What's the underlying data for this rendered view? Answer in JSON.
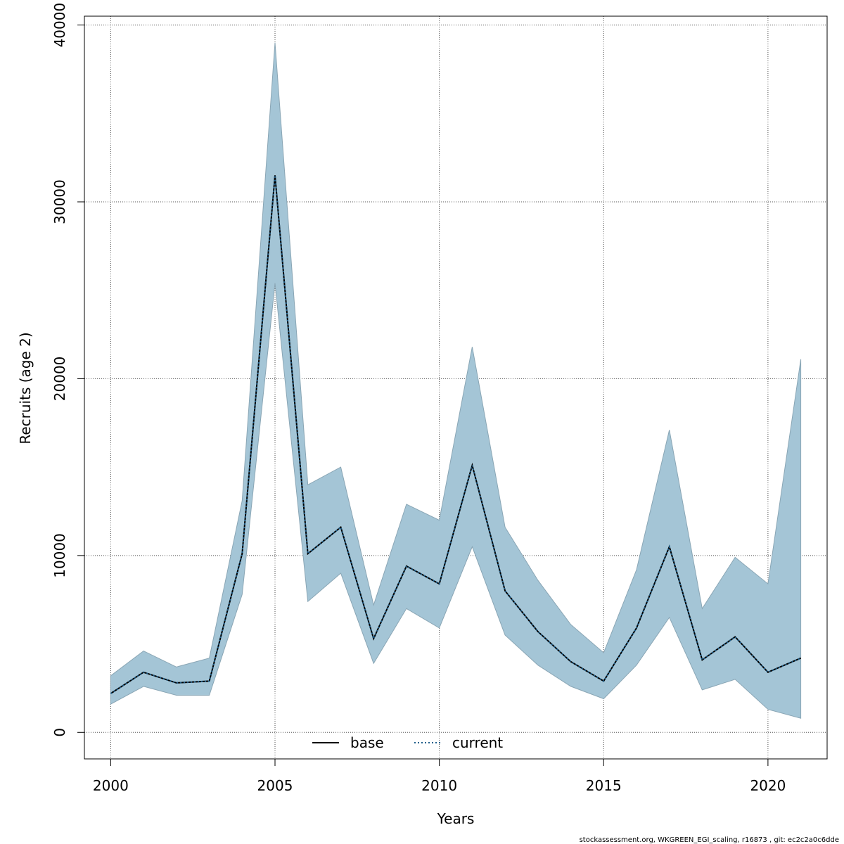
{
  "chart_data": {
    "type": "line",
    "xlabel": "Years",
    "ylabel": "Recruits (age 2)",
    "xlim": [
      1999.2,
      2021.8
    ],
    "ylim": [
      -1500,
      40500
    ],
    "x_ticks": [
      2000,
      2005,
      2010,
      2015,
      2020
    ],
    "y_ticks": [
      0,
      10000,
      20000,
      30000,
      40000
    ],
    "grid": true,
    "legend_position": "bottom-center",
    "x": [
      2000,
      2001,
      2002,
      2003,
      2004,
      2005,
      2006,
      2007,
      2008,
      2009,
      2010,
      2011,
      2012,
      2013,
      2014,
      2015,
      2016,
      2017,
      2018,
      2019,
      2020,
      2021
    ],
    "series": [
      {
        "name": "base",
        "style": "solid",
        "color": "#000000",
        "values": [
          2200,
          3400,
          2800,
          2900,
          10100,
          31500,
          10100,
          11600,
          5300,
          9400,
          8400,
          15100,
          8000,
          5700,
          4000,
          2900,
          5900,
          10500,
          4100,
          5400,
          3400,
          4200
        ]
      },
      {
        "name": "current",
        "style": "dotted",
        "color": "#1f5f8b",
        "values": [
          2200,
          3400,
          2800,
          2900,
          10100,
          31500,
          10100,
          11600,
          5300,
          9400,
          8400,
          15100,
          8000,
          5700,
          4000,
          2900,
          5900,
          10500,
          4100,
          5400,
          3400,
          4200
        ]
      }
    ],
    "band": {
      "color": "#a4c5d6",
      "upper": [
        3200,
        4600,
        3700,
        4200,
        13100,
        39000,
        14000,
        15000,
        7200,
        12900,
        12000,
        21800,
        11600,
        8600,
        6100,
        4500,
        9200,
        17100,
        7000,
        9900,
        8400,
        21100
      ],
      "lower": [
        1600,
        2600,
        2100,
        2100,
        7800,
        25400,
        7400,
        9000,
        3900,
        7000,
        5900,
        10500,
        5500,
        3800,
        2600,
        1900,
        3800,
        6500,
        2400,
        3000,
        1300,
        800
      ]
    }
  },
  "footer": "stockassessment.org, WKGREEN_EGI_scaling, r16873 , git: ec2c2a0c6dde"
}
